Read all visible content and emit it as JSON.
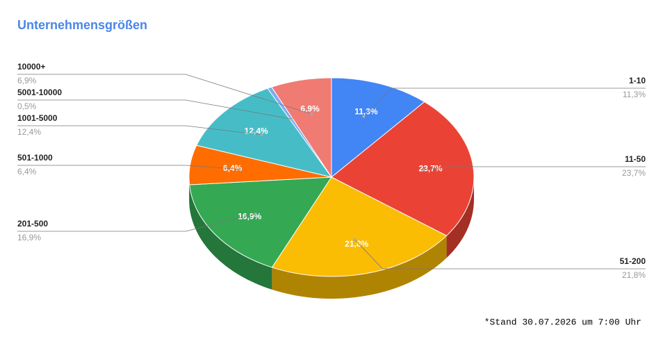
{
  "chart_data": {
    "type": "pie",
    "title": "Unternehmensgrößen",
    "categories": [
      "1-10",
      "11-50",
      "51-200",
      "201-500",
      "501-1000",
      "1001-5000",
      "5001-10000",
      "10000+"
    ],
    "values": [
      11.3,
      23.7,
      21.8,
      16.9,
      6.4,
      12.4,
      0.5,
      6.9
    ],
    "value_labels": [
      "11,3%",
      "23,7%",
      "21,8%",
      "16,9%",
      "6,4%",
      "12,4%",
      "0,5%",
      "6,9%"
    ],
    "colors": [
      "#4285f4",
      "#ea4335",
      "#fbbc04",
      "#34a853",
      "#ff6d01",
      "#46bdc6",
      "#7baaf7",
      "#f07b72"
    ],
    "footnote": "*Stand 30.07.2026 um 7:00 Uhr"
  }
}
